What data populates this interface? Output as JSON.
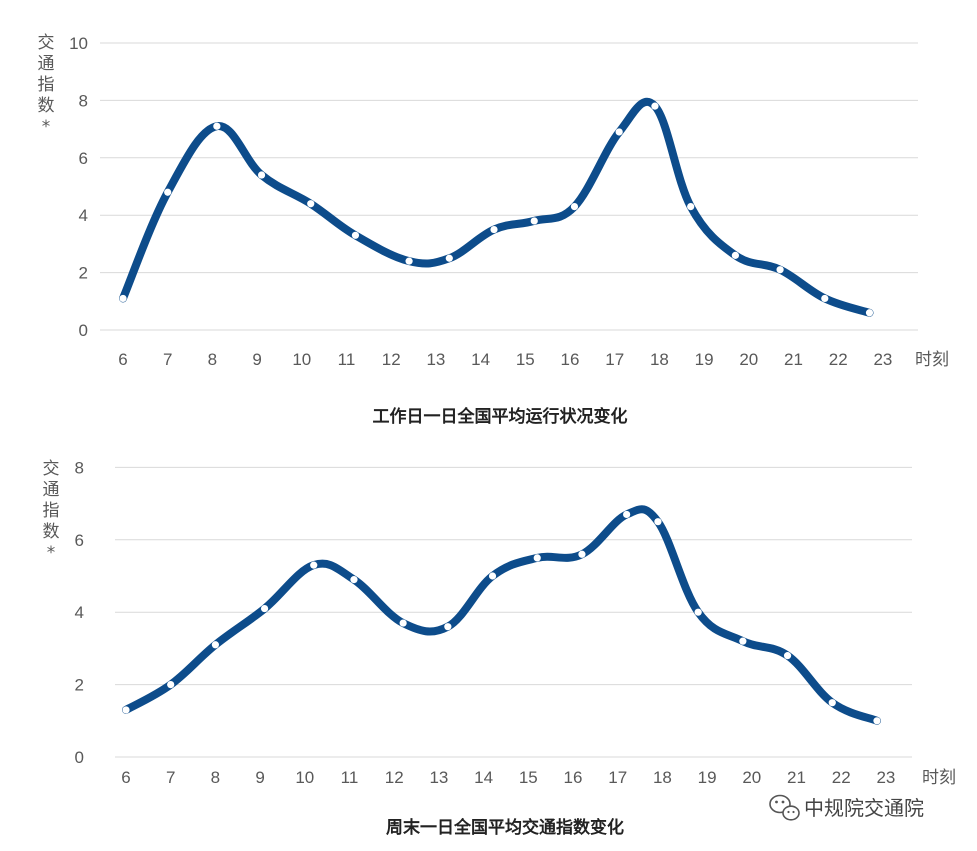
{
  "chart_data": [
    {
      "type": "line",
      "title": "工作日一日全国平均运行状况变化",
      "ylabel": "交通指数*",
      "xlabel": "时刻",
      "categories": [
        "6",
        "7",
        "8",
        "9",
        "10",
        "11",
        "12",
        "13",
        "14",
        "15",
        "16",
        "17",
        "18",
        "19",
        "20",
        "21",
        "22",
        "23"
      ],
      "x": [
        6,
        7,
        8.1,
        9.1,
        10.2,
        11.2,
        12.4,
        13.3,
        14.3,
        15.2,
        16.1,
        17.1,
        17.9,
        18.7,
        19.7,
        20.7,
        21.7,
        22.7
      ],
      "values": [
        1.1,
        4.8,
        7.1,
        5.4,
        4.4,
        3.3,
        2.4,
        2.5,
        3.5,
        3.8,
        4.3,
        6.9,
        7.8,
        4.3,
        2.6,
        2.1,
        1.1,
        0.6
      ],
      "yticks": [
        0,
        2,
        4,
        6,
        8,
        10
      ],
      "ylim": [
        0,
        10
      ],
      "grid": true
    },
    {
      "type": "line",
      "title": "周末一日全国平均交通指数变化",
      "ylabel": "交通指数*",
      "xlabel": "时刻",
      "categories": [
        "6",
        "7",
        "8",
        "9",
        "10",
        "11",
        "12",
        "13",
        "14",
        "15",
        "16",
        "17",
        "18",
        "19",
        "20",
        "21",
        "22",
        "23"
      ],
      "x": [
        6,
        7,
        8,
        9.1,
        10.2,
        11.1,
        12.2,
        13.2,
        14.2,
        15.2,
        16.2,
        17.2,
        17.9,
        18.8,
        19.8,
        20.8,
        21.8,
        22.8
      ],
      "values": [
        1.3,
        2.0,
        3.1,
        4.1,
        5.3,
        4.9,
        3.7,
        3.6,
        5.0,
        5.5,
        5.6,
        6.7,
        6.5,
        4.0,
        3.2,
        2.8,
        1.5,
        1.0
      ],
      "yticks": [
        0,
        2,
        4,
        6,
        8
      ],
      "ylim": [
        0,
        8
      ],
      "grid": true
    }
  ],
  "watermark": {
    "text": "中规院交通院",
    "icon": "wechat-icon"
  }
}
